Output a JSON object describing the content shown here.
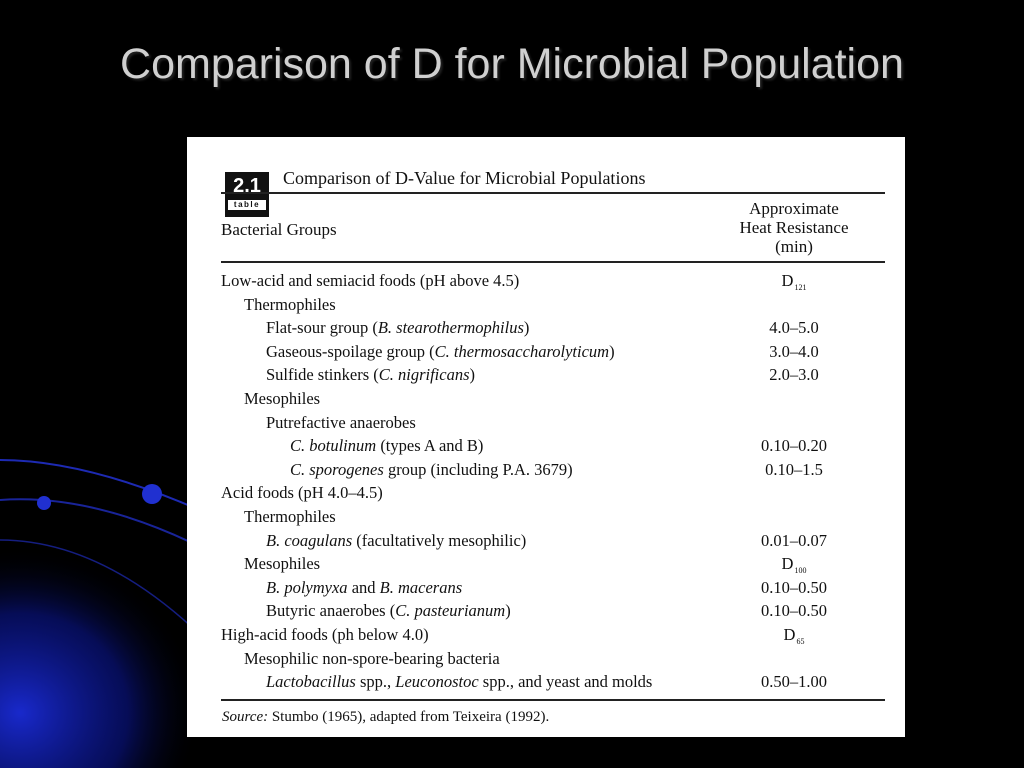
{
  "slide": {
    "title": "Comparison of D for Microbial Population"
  },
  "table": {
    "badge_number": "2.1",
    "badge_word": "table",
    "title": "Comparison of D-Value for Microbial Populations",
    "col_left": "Bacterial Groups",
    "col_right": [
      "Approximate",
      "Heat Resistance",
      "(min)"
    ],
    "rows": [
      {
        "level": 0,
        "label": [
          {
            "t": "Low-acid and semiacid foods (pH above 4.5)"
          }
        ],
        "value": "D",
        "value_sub": "121"
      },
      {
        "level": 1,
        "label": [
          {
            "t": "Thermophiles"
          }
        ],
        "value": ""
      },
      {
        "level": 2,
        "label": [
          {
            "t": "Flat-sour group ("
          },
          {
            "t": "B. stearothermophilus",
            "i": true
          },
          {
            "t": ")"
          }
        ],
        "value": "4.0–5.0"
      },
      {
        "level": 2,
        "label": [
          {
            "t": "Gaseous-spoilage group ("
          },
          {
            "t": "C. thermosaccharolyticum",
            "i": true
          },
          {
            "t": ")"
          }
        ],
        "value": "3.0–4.0"
      },
      {
        "level": 2,
        "label": [
          {
            "t": "Sulfide stinkers ("
          },
          {
            "t": "C. nigrificans",
            "i": true
          },
          {
            "t": ")"
          }
        ],
        "value": "2.0–3.0"
      },
      {
        "level": 1,
        "label": [
          {
            "t": "Mesophiles"
          }
        ],
        "value": ""
      },
      {
        "level": 2,
        "label": [
          {
            "t": "Putrefactive anaerobes"
          }
        ],
        "value": ""
      },
      {
        "level": 3,
        "label": [
          {
            "t": "C. botulinum",
            "i": true
          },
          {
            "t": " (types A and B)"
          }
        ],
        "value": "0.10–0.20"
      },
      {
        "level": 3,
        "label": [
          {
            "t": "C. sporogenes",
            "i": true
          },
          {
            "t": " group (including P.A. 3679)"
          }
        ],
        "value": "0.10–1.5"
      },
      {
        "level": 0,
        "label": [
          {
            "t": "Acid foods (pH 4.0–4.5)"
          }
        ],
        "value": ""
      },
      {
        "level": 1,
        "label": [
          {
            "t": "Thermophiles"
          }
        ],
        "value": ""
      },
      {
        "level": 2,
        "label": [
          {
            "t": "B. coagulans",
            "i": true
          },
          {
            "t": " (facultatively mesophilic)"
          }
        ],
        "value": "0.01–0.07"
      },
      {
        "level": 1,
        "label": [
          {
            "t": "Mesophiles"
          }
        ],
        "value": "D",
        "value_sub": "100"
      },
      {
        "level": 2,
        "label": [
          {
            "t": "B. polymyxa",
            "i": true
          },
          {
            "t": " and "
          },
          {
            "t": "B. macerans",
            "i": true
          }
        ],
        "value": "0.10–0.50"
      },
      {
        "level": 2,
        "label": [
          {
            "t": "Butyric anaerobes ("
          },
          {
            "t": "C. pasteurianum",
            "i": true
          },
          {
            "t": ")"
          }
        ],
        "value": "0.10–0.50"
      },
      {
        "level": 0,
        "label": [
          {
            "t": "High-acid foods (ph below 4.0)"
          }
        ],
        "value": "D",
        "value_sub": "65"
      },
      {
        "level": 1,
        "label": [
          {
            "t": "Mesophilic non-spore-bearing bacteria"
          }
        ],
        "value": ""
      },
      {
        "level": 2,
        "label": [
          {
            "t": "Lactobacillus",
            "i": true
          },
          {
            "t": " spp., "
          },
          {
            "t": "Leuconostoc",
            "i": true
          },
          {
            "t": " spp., and yeast and molds"
          }
        ],
        "value": "0.50–1.00"
      }
    ],
    "source_label": "Source:",
    "source_text": " Stumbo (1965), adapted from Teixeira (1992)."
  },
  "colors": {
    "background": "#000000",
    "title": "#d0d0d0",
    "decor": "#1a2bd6"
  }
}
